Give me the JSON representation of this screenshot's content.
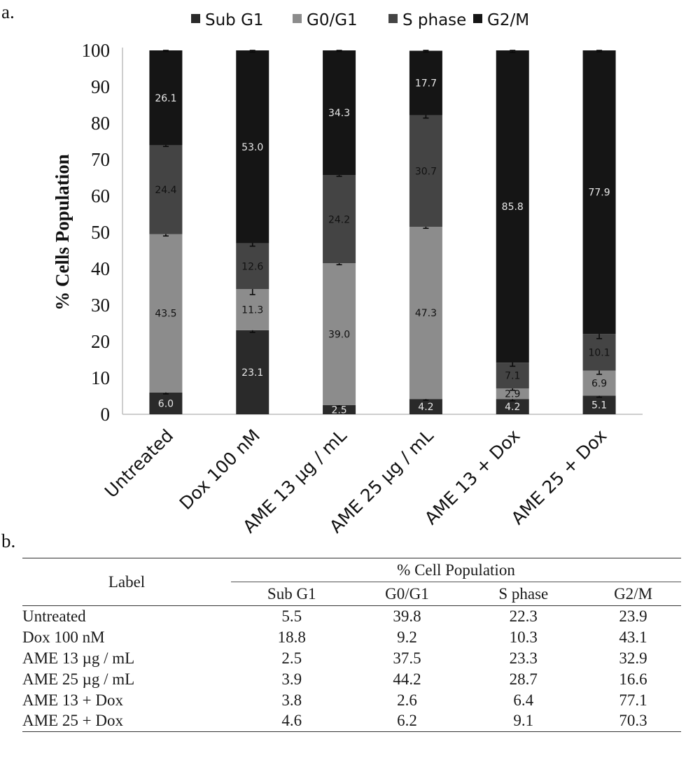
{
  "panel_a_label": "a.",
  "panel_b_label": "b.",
  "colors": {
    "Sub G1": "#2a2a2a",
    "G0/G1": "#8c8c8c",
    "S phase": "#444444",
    "G2/M": "#151515"
  },
  "chart_data": {
    "type": "bar",
    "stacked": true,
    "title": "",
    "ylabel": "% Cells Population",
    "xlabel": "",
    "ylim": [
      0,
      100
    ],
    "yticks": [
      0,
      10,
      20,
      30,
      40,
      50,
      60,
      70,
      80,
      90,
      100
    ],
    "legend_position": "top",
    "categories": [
      "Untreated",
      "Dox 100 nM",
      "AME 13 µg / mL",
      "AME 25 µg / mL",
      "AME 13 + Dox",
      "AME 25 + Dox"
    ],
    "series": [
      {
        "name": "Sub G1",
        "values": [
          6.0,
          23.1,
          2.5,
          4.2,
          4.2,
          5.1
        ],
        "labels": [
          "6.0",
          "23.1",
          "2.5",
          "4.2",
          "4.2",
          "5.1"
        ],
        "error": [
          0.4,
          0.6,
          0.3,
          0.3,
          0.5,
          0.4
        ]
      },
      {
        "name": "G0/G1",
        "values": [
          43.5,
          11.3,
          39.0,
          47.3,
          2.9,
          6.9
        ],
        "labels": [
          "43.5",
          "11.3",
          "39.0",
          "47.3",
          "2.9",
          "6.9"
        ],
        "error": [
          0.5,
          1.5,
          0.4,
          0.4,
          0.5,
          1.0
        ]
      },
      {
        "name": "S phase",
        "values": [
          24.4,
          12.6,
          24.2,
          30.7,
          7.1,
          10.1
        ],
        "labels": [
          "24.4",
          "12.6",
          "24.2",
          "30.7",
          "7.1",
          "10.1"
        ],
        "error": [
          0.3,
          0.8,
          0.3,
          0.8,
          1.0,
          1.3
        ]
      },
      {
        "name": "G2/M",
        "values": [
          26.1,
          53.0,
          34.3,
          17.7,
          85.8,
          77.9
        ],
        "labels": [
          "26.1",
          "53.0",
          "34.3",
          "17.7",
          "85.8",
          "77.9"
        ],
        "error": [
          0.3,
          0.5,
          0.3,
          0.4,
          0.6,
          0.4
        ]
      }
    ]
  },
  "table": {
    "label_header": "Label",
    "group_header": "% Cell Population",
    "columns": [
      "Sub G1",
      "G0/G1",
      "S phase",
      "G2/M"
    ],
    "rows": [
      {
        "label": "Untreated",
        "values": [
          "5.5",
          "39.8",
          "22.3",
          "23.9"
        ]
      },
      {
        "label": "Dox 100 nM",
        "values": [
          "18.8",
          "9.2",
          "10.3",
          "43.1"
        ]
      },
      {
        "label": "AME 13 µg / mL",
        "values": [
          "2.5",
          "37.5",
          "23.3",
          "32.9"
        ]
      },
      {
        "label": "AME 25 µg / mL",
        "values": [
          "3.9",
          "44.2",
          "28.7",
          "16.6"
        ]
      },
      {
        "label": "AME 13 + Dox",
        "values": [
          "3.8",
          "2.6",
          "6.4",
          "77.1"
        ]
      },
      {
        "label": "AME 25 + Dox",
        "values": [
          "4.6",
          "6.2",
          "9.1",
          "70.3"
        ]
      }
    ]
  }
}
